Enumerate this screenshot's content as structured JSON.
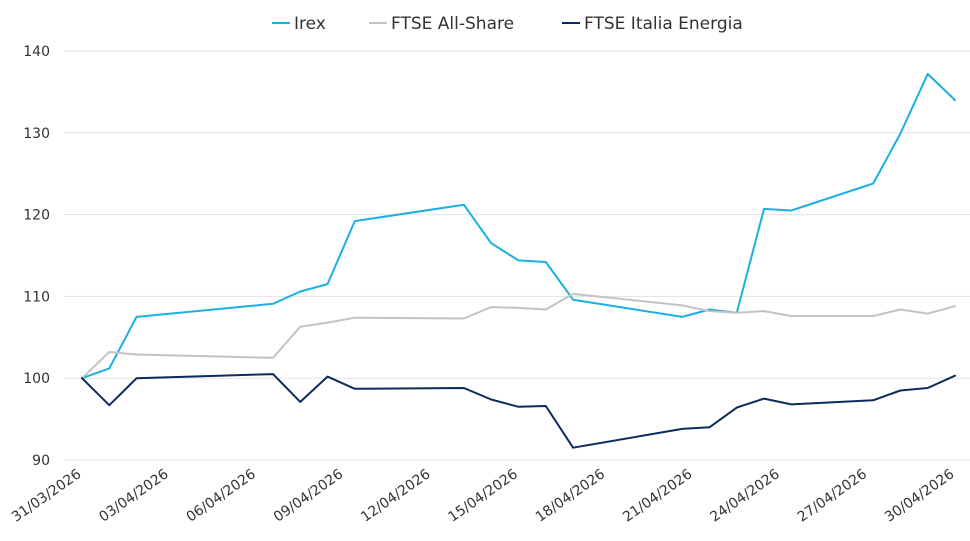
{
  "chart_data": {
    "type": "line",
    "title": "",
    "xlabel": "",
    "ylabel": "",
    "ylim": [
      90,
      140
    ],
    "yticks": [
      90,
      100,
      110,
      120,
      130,
      140
    ],
    "xlim": [
      "31/03/2026",
      "30/04/2026"
    ],
    "xtick_labels": [
      "31/03/2026",
      "03/04/2026",
      "06/04/2026",
      "09/04/2026",
      "12/04/2026",
      "15/04/2026",
      "18/04/2026",
      "21/04/2026",
      "24/04/2026",
      "27/04/2026",
      "30/04/2026"
    ],
    "grid": "horizontal",
    "legend_position": "top-center",
    "series": [
      {
        "name": "Irex",
        "color": "#1ab0e0",
        "points": [
          [
            "31/03/2026",
            100.0
          ],
          [
            "01/04/2026",
            101.2
          ],
          [
            "02/04/2026",
            107.5
          ],
          [
            "07/04/2026",
            109.1
          ],
          [
            "08/04/2026",
            110.6
          ],
          [
            "09/04/2026",
            111.5
          ],
          [
            "10/04/2026",
            119.2
          ],
          [
            "14/04/2026",
            121.2
          ],
          [
            "15/04/2026",
            116.5
          ],
          [
            "16/04/2026",
            114.4
          ],
          [
            "17/04/2026",
            114.2
          ],
          [
            "18/04/2026",
            109.6
          ],
          [
            "22/04/2026",
            107.5
          ],
          [
            "23/04/2026",
            108.4
          ],
          [
            "24/04/2026",
            108.0
          ],
          [
            "25/04/2026",
            120.7
          ],
          [
            "26/04/2026",
            120.5
          ],
          [
            "29/04/2026",
            123.8
          ],
          [
            "30/04/2026",
            129.9
          ],
          [
            "01/05/2026",
            137.2
          ],
          [
            "02/05/2026",
            134.0
          ]
        ]
      },
      {
        "name": "FTSE All-Share",
        "color": "#c3c3c3",
        "points": [
          [
            "31/03/2026",
            100.0
          ],
          [
            "01/04/2026",
            103.2
          ],
          [
            "02/04/2026",
            102.9
          ],
          [
            "07/04/2026",
            102.5
          ],
          [
            "08/04/2026",
            106.3
          ],
          [
            "09/04/2026",
            106.8
          ],
          [
            "10/04/2026",
            107.4
          ],
          [
            "14/04/2026",
            107.3
          ],
          [
            "15/04/2026",
            108.7
          ],
          [
            "16/04/2026",
            108.6
          ],
          [
            "17/04/2026",
            108.4
          ],
          [
            "18/04/2026",
            110.3
          ],
          [
            "22/04/2026",
            108.9
          ],
          [
            "23/04/2026",
            108.2
          ],
          [
            "24/04/2026",
            108.0
          ],
          [
            "25/04/2026",
            108.2
          ],
          [
            "26/04/2026",
            107.6
          ],
          [
            "29/04/2026",
            107.6
          ],
          [
            "30/04/2026",
            108.4
          ],
          [
            "01/05/2026",
            107.9
          ],
          [
            "02/05/2026",
            108.8
          ]
        ]
      },
      {
        "name": "FTSE Italia Energia",
        "color": "#0d2a5c",
        "points": [
          [
            "31/03/2026",
            100.0
          ],
          [
            "01/04/2026",
            96.7
          ],
          [
            "02/04/2026",
            100.0
          ],
          [
            "07/04/2026",
            100.5
          ],
          [
            "08/04/2026",
            97.1
          ],
          [
            "09/04/2026",
            100.2
          ],
          [
            "10/04/2026",
            98.7
          ],
          [
            "14/04/2026",
            98.8
          ],
          [
            "15/04/2026",
            97.4
          ],
          [
            "16/04/2026",
            96.5
          ],
          [
            "17/04/2026",
            96.6
          ],
          [
            "18/04/2026",
            91.5
          ],
          [
            "22/04/2026",
            93.8
          ],
          [
            "23/04/2026",
            94.0
          ],
          [
            "24/04/2026",
            96.4
          ],
          [
            "25/04/2026",
            97.5
          ],
          [
            "26/04/2026",
            96.8
          ],
          [
            "29/04/2026",
            97.3
          ],
          [
            "30/04/2026",
            98.5
          ],
          [
            "01/05/2026",
            98.8
          ],
          [
            "02/05/2026",
            100.3
          ]
        ]
      }
    ]
  }
}
